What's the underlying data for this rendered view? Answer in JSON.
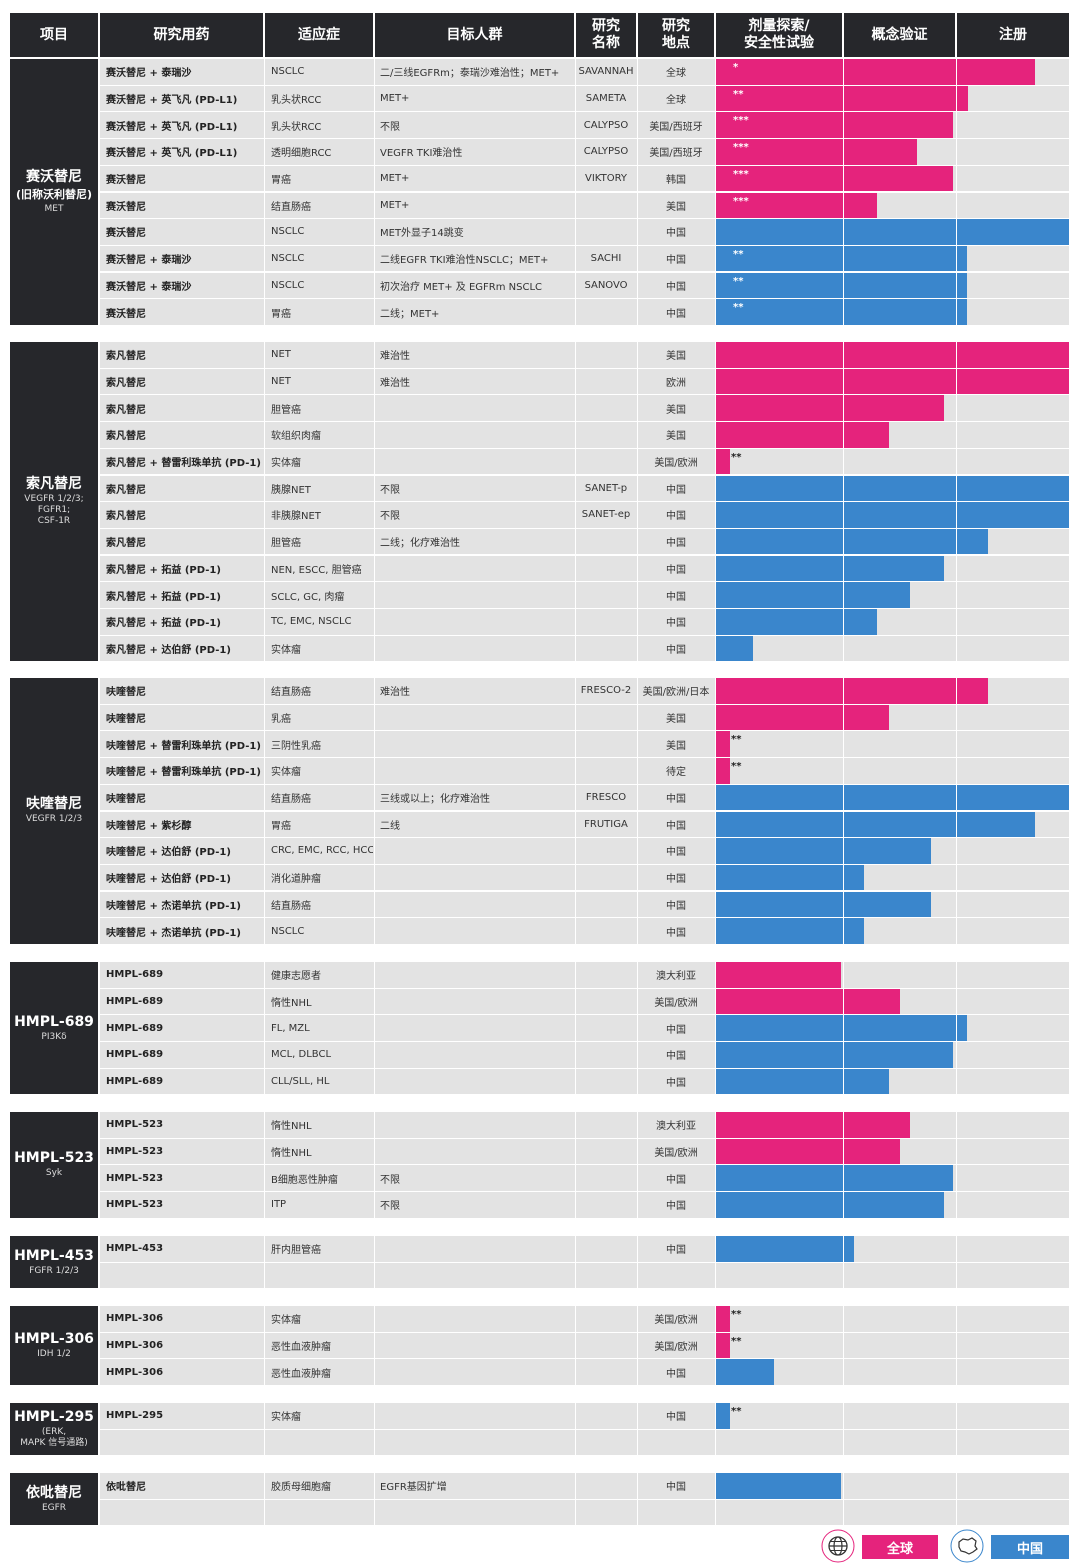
{
  "colors": {
    "global": "#e5237c",
    "china": "#3a86cc",
    "header_bg": "#26272b",
    "row_bg": "#e3e3e3"
  },
  "header": {
    "xiangmu": "项目",
    "drug": "研究用药",
    "indication": "适应症",
    "population": "目标人群",
    "study": "研究\n名称",
    "location": "研究\n地点",
    "phase1": "剂量探索/\n安全性试验",
    "phase2": "概念验证",
    "phase3": "注册"
  },
  "groups": [
    {
      "name": "赛沃替尼",
      "alias": "(旧称沃利替尼)",
      "target": "MET",
      "rows": [
        {
          "drug": "赛沃替尼 + 泰瑞沙",
          "indication": "NSCLC",
          "population": "二/三线EGFRm；泰瑞沙难治性；MET+",
          "study": "SAVANNAH",
          "location": "全球",
          "region": "global",
          "progress": 0.905,
          "stars": "*"
        },
        {
          "drug": "赛沃替尼 + 英飞凡 (PD-L1)",
          "indication": "乳头状RCC",
          "population": "MET+",
          "study": "SAMETA",
          "location": "全球",
          "region": "global",
          "progress": 0.715,
          "stars": "**"
        },
        {
          "drug": "赛沃替尼 + 英飞凡 (PD-L1)",
          "indication": "乳头状RCC",
          "population": "不限",
          "study": "CALYPSO",
          "location": "美国/西班牙",
          "region": "global",
          "progress": 0.67,
          "stars": "***"
        },
        {
          "drug": "赛沃替尼 + 英飞凡 (PD-L1)",
          "indication": "透明细胞RCC",
          "population": "VEGFR TKI难治性",
          "study": "CALYPSO",
          "location": "美国/西班牙",
          "region": "global",
          "progress": 0.57,
          "stars": "***"
        },
        {
          "drug": "赛沃替尼",
          "indication": "胃癌",
          "population": "MET+",
          "study": "VIKTORY",
          "location": "韩国",
          "region": "global",
          "progress": 0.67,
          "stars": "***"
        },
        {
          "drug": "赛沃替尼",
          "indication": "结直肠癌",
          "population": "MET+",
          "study": "",
          "location": "美国",
          "region": "global",
          "progress": 0.455,
          "stars": "***"
        },
        {
          "drug": "赛沃替尼",
          "indication": "NSCLC",
          "population": "MET外显子14跳变",
          "study": "",
          "location": "中国",
          "region": "china",
          "progress": 1.0,
          "stars": ""
        },
        {
          "drug": "赛沃替尼 + 泰瑞沙",
          "indication": "NSCLC",
          "population": "二线EGFR TKI难治性NSCLC；MET+",
          "study": "SACHI",
          "location": "中国",
          "region": "china",
          "progress": 0.71,
          "stars": "**"
        },
        {
          "drug": "赛沃替尼 + 泰瑞沙",
          "indication": "NSCLC",
          "population": "初次治疗 MET+ 及 EGFRm NSCLC",
          "study": "SANOVO",
          "location": "中国",
          "region": "china",
          "progress": 0.71,
          "stars": "**"
        },
        {
          "drug": "赛沃替尼",
          "indication": "胃癌",
          "population": "二线；MET+",
          "study": "",
          "location": "中国",
          "region": "china",
          "progress": 0.71,
          "stars": "**"
        }
      ]
    },
    {
      "name": "索凡替尼",
      "alias": "",
      "target": "VEGFR 1/2/3;\nFGFR1;\nCSF-1R",
      "rows": [
        {
          "drug": "索凡替尼",
          "indication": "NET",
          "population": "难治性",
          "study": "",
          "location": "美国",
          "region": "global",
          "progress": 1.0,
          "stars": ""
        },
        {
          "drug": "索凡替尼",
          "indication": "NET",
          "population": "难治性",
          "study": "",
          "location": "欧洲",
          "region": "global",
          "progress": 1.0,
          "stars": ""
        },
        {
          "drug": "索凡替尼",
          "indication": "胆管癌",
          "population": "",
          "study": "",
          "location": "美国",
          "region": "global",
          "progress": 0.645,
          "stars": ""
        },
        {
          "drug": "索凡替尼",
          "indication": "软组织肉瘤",
          "population": "",
          "study": "",
          "location": "美国",
          "region": "global",
          "progress": 0.49,
          "stars": ""
        },
        {
          "drug": "索凡替尼 + 替雷利珠单抗 (PD-1)",
          "indication": "实体瘤",
          "population": "",
          "study": "",
          "location": "美国/欧洲",
          "region": "global",
          "progress": 0.04,
          "stars": "**"
        },
        {
          "drug": "索凡替尼",
          "indication": "胰腺NET",
          "population": "不限",
          "study": "SANET-p",
          "location": "中国",
          "region": "china",
          "progress": 1.0,
          "stars": ""
        },
        {
          "drug": "索凡替尼",
          "indication": "非胰腺NET",
          "population": "不限",
          "study": "SANET-ep",
          "location": "中国",
          "region": "china",
          "progress": 1.0,
          "stars": ""
        },
        {
          "drug": "索凡替尼",
          "indication": "胆管癌",
          "population": "二线；化疗难治性",
          "study": "",
          "location": "中国",
          "region": "china",
          "progress": 0.77,
          "stars": ""
        },
        {
          "drug": "索凡替尼 + 拓益 (PD-1)",
          "indication": "NEN, ESCC, 胆管癌",
          "population": "",
          "study": "",
          "location": "中国",
          "region": "china",
          "progress": 0.645,
          "stars": ""
        },
        {
          "drug": "索凡替尼 + 拓益 (PD-1)",
          "indication": "SCLC, GC, 肉瘤",
          "population": "",
          "study": "",
          "location": "中国",
          "region": "china",
          "progress": 0.55,
          "stars": ""
        },
        {
          "drug": "索凡替尼 + 拓益 (PD-1)",
          "indication": "TC, EMC, NSCLC",
          "population": "",
          "study": "",
          "location": "中国",
          "region": "china",
          "progress": 0.455,
          "stars": ""
        },
        {
          "drug": "索凡替尼 + 达伯舒 (PD-1)",
          "indication": "实体瘤",
          "population": "",
          "study": "",
          "location": "中国",
          "region": "china",
          "progress": 0.105,
          "stars": ""
        }
      ]
    },
    {
      "name": "呋喹替尼",
      "alias": "",
      "target": "VEGFR 1/2/3",
      "rows": [
        {
          "drug": "呋喹替尼",
          "indication": "结直肠癌",
          "population": "难治性",
          "study": "FRESCO-2",
          "location": "美国/欧洲/日本",
          "region": "global",
          "progress": 0.77,
          "stars": ""
        },
        {
          "drug": "呋喹替尼",
          "indication": "乳癌",
          "population": "",
          "study": "",
          "location": "美国",
          "region": "global",
          "progress": 0.49,
          "stars": ""
        },
        {
          "drug": "呋喹替尼 + 替雷利珠单抗 (PD-1)",
          "indication": "三阴性乳癌",
          "population": "",
          "study": "",
          "location": "美国",
          "region": "global",
          "progress": 0.04,
          "stars": "**"
        },
        {
          "drug": "呋喹替尼 + 替雷利珠单抗 (PD-1)",
          "indication": "实体瘤",
          "population": "",
          "study": "",
          "location": "待定",
          "region": "global",
          "progress": 0.04,
          "stars": "**"
        },
        {
          "drug": "呋喹替尼",
          "indication": "结直肠癌",
          "population": "三线或以上；化疗难治性",
          "study": "FRESCO",
          "location": "中国",
          "region": "china",
          "progress": 1.0,
          "stars": ""
        },
        {
          "drug": "呋喹替尼 + 紫杉醇",
          "indication": "胃癌",
          "population": "二线",
          "study": "FRUTIGA",
          "location": "中国",
          "region": "china",
          "progress": 0.905,
          "stars": ""
        },
        {
          "drug": "呋喹替尼 + 达伯舒 (PD-1)",
          "indication": "CRC, EMC, RCC, HCC",
          "population": "",
          "study": "",
          "location": "中国",
          "region": "china",
          "progress": 0.61,
          "stars": ""
        },
        {
          "drug": "呋喹替尼 + 达伯舒 (PD-1)",
          "indication": "消化道肿瘤",
          "population": "",
          "study": "",
          "location": "中国",
          "region": "china",
          "progress": 0.42,
          "stars": ""
        },
        {
          "drug": "呋喹替尼 + 杰诺单抗 (PD-1)",
          "indication": "结直肠癌",
          "population": "",
          "study": "",
          "location": "中国",
          "region": "china",
          "progress": 0.61,
          "stars": ""
        },
        {
          "drug": "呋喹替尼 + 杰诺单抗 (PD-1)",
          "indication": "NSCLC",
          "population": "",
          "study": "",
          "location": "中国",
          "region": "china",
          "progress": 0.42,
          "stars": ""
        }
      ]
    },
    {
      "name": "HMPL-689",
      "alias": "",
      "target": "PI3Kδ",
      "rows": [
        {
          "drug": "HMPL-689",
          "indication": "健康志愿者",
          "population": "",
          "study": "",
          "location": "澳大利亚",
          "region": "global",
          "progress": 0.355,
          "stars": ""
        },
        {
          "drug": "HMPL-689",
          "indication": "惰性NHL",
          "population": "",
          "study": "",
          "location": "美国/欧洲",
          "region": "global",
          "progress": 0.52,
          "stars": ""
        },
        {
          "drug": "HMPL-689",
          "indication": "FL, MZL",
          "population": "",
          "study": "",
          "location": "中国",
          "region": "china",
          "progress": 0.71,
          "stars": ""
        },
        {
          "drug": "HMPL-689",
          "indication": "MCL, DLBCL",
          "population": "",
          "study": "",
          "location": "中国",
          "region": "china",
          "progress": 0.67,
          "stars": ""
        },
        {
          "drug": "HMPL-689",
          "indication": "CLL/SLL, HL",
          "population": "",
          "study": "",
          "location": "中国",
          "region": "china",
          "progress": 0.49,
          "stars": ""
        }
      ]
    },
    {
      "name": "HMPL-523",
      "alias": "",
      "target": "Syk",
      "rows": [
        {
          "drug": "HMPL-523",
          "indication": "惰性NHL",
          "population": "",
          "study": "",
          "location": "澳大利亚",
          "region": "global",
          "progress": 0.55,
          "stars": ""
        },
        {
          "drug": "HMPL-523",
          "indication": "惰性NHL",
          "population": "",
          "study": "",
          "location": "美国/欧洲",
          "region": "global",
          "progress": 0.52,
          "stars": ""
        },
        {
          "drug": "HMPL-523",
          "indication": "B细胞恶性肿瘤",
          "population": "不限",
          "study": "",
          "location": "中国",
          "region": "china",
          "progress": 0.67,
          "stars": ""
        },
        {
          "drug": "HMPL-523",
          "indication": "ITP",
          "population": "不限",
          "study": "",
          "location": "中国",
          "region": "china",
          "progress": 0.645,
          "stars": ""
        }
      ]
    },
    {
      "name": "HMPL-453",
      "alias": "",
      "target": "FGFR 1/2/3",
      "rows": [
        {
          "drug": "HMPL-453",
          "indication": "肝内胆管癌",
          "population": "",
          "study": "",
          "location": "中国",
          "region": "china",
          "progress": 0.39,
          "stars": ""
        },
        {
          "drug": "",
          "indication": "",
          "population": "",
          "study": "",
          "location": "",
          "region": "",
          "progress": 0,
          "stars": ""
        }
      ]
    },
    {
      "name": "HMPL-306",
      "alias": "",
      "target": "IDH 1/2",
      "rows": [
        {
          "drug": "HMPL-306",
          "indication": "实体瘤",
          "population": "",
          "study": "",
          "location": "美国/欧洲",
          "region": "global",
          "progress": 0.04,
          "stars": "**"
        },
        {
          "drug": "HMPL-306",
          "indication": "恶性血液肿瘤",
          "population": "",
          "study": "",
          "location": "美国/欧洲",
          "region": "global",
          "progress": 0.04,
          "stars": "**"
        },
        {
          "drug": "HMPL-306",
          "indication": "恶性血液肿瘤",
          "population": "",
          "study": "",
          "location": "中国",
          "region": "china",
          "progress": 0.165,
          "stars": ""
        }
      ]
    },
    {
      "name": "HMPL-295",
      "alias": "",
      "target": "(ERK,\nMAPK 信号通路)",
      "rows": [
        {
          "drug": "HMPL-295",
          "indication": "实体瘤",
          "population": "",
          "study": "",
          "location": "中国",
          "region": "china",
          "progress": 0.04,
          "stars": "**"
        },
        {
          "drug": "",
          "indication": "",
          "population": "",
          "study": "",
          "location": "",
          "region": "",
          "progress": 0,
          "stars": ""
        }
      ]
    },
    {
      "name": "依吡替尼",
      "alias": "",
      "target": "EGFR",
      "rows": [
        {
          "drug": "依吡替尼",
          "indication": "胶质母细胞瘤",
          "population": "EGFR基因扩增",
          "study": "",
          "location": "中国",
          "region": "china",
          "progress": 0.355,
          "stars": ""
        },
        {
          "drug": "",
          "indication": "",
          "population": "",
          "study": "",
          "location": "",
          "region": "",
          "progress": 0,
          "stars": ""
        }
      ]
    }
  ],
  "legend": {
    "global_label": "全球",
    "china_label": "中国",
    "globe_icon": "globe-icon",
    "china_icon": "china-map-icon"
  }
}
